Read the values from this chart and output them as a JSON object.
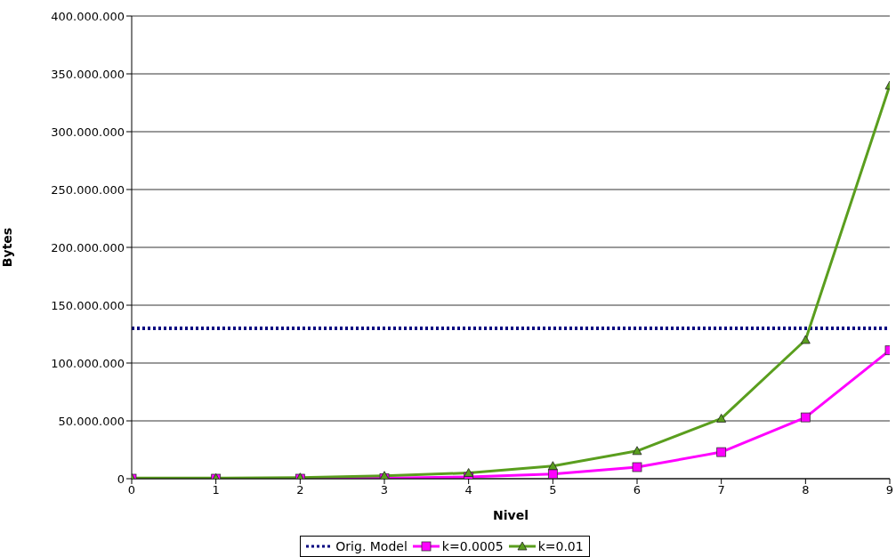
{
  "chart_data": {
    "type": "line",
    "xlabel": "Nivel",
    "ylabel": "Bytes",
    "x": [
      0,
      1,
      2,
      3,
      4,
      5,
      6,
      7,
      8,
      9
    ],
    "series": [
      {
        "name": "Orig. Model",
        "color": "#000080",
        "line_style": "dotted",
        "marker": "none",
        "values": [
          130000000,
          130000000,
          130000000,
          130000000,
          130000000,
          130000000,
          130000000,
          130000000,
          130000000,
          130000000
        ]
      },
      {
        "name": "k=0.0005",
        "color": "#ff00ff",
        "line_style": "solid",
        "marker": "square",
        "values": [
          0,
          0,
          0,
          500000,
          1500000,
          4000000,
          10000000,
          23000000,
          53000000,
          111000000
        ]
      },
      {
        "name": "k=0.01",
        "color": "#5a9e1e",
        "line_style": "solid",
        "marker": "triangle",
        "values": [
          500000,
          500000,
          1000000,
          2500000,
          5000000,
          11000000,
          24000000,
          52000000,
          120000000,
          340000000
        ]
      }
    ],
    "xlim": [
      0,
      9
    ],
    "xticks": [
      0,
      1,
      2,
      3,
      4,
      5,
      6,
      7,
      8,
      9
    ],
    "ylim": [
      0,
      400000000
    ],
    "yticks": [
      {
        "value": 0,
        "label": "0"
      },
      {
        "value": 50000000,
        "label": "50.000.000"
      },
      {
        "value": 100000000,
        "label": "100.000.000"
      },
      {
        "value": 150000000,
        "label": "150.000.000"
      },
      {
        "value": 200000000,
        "label": "200.000.000"
      },
      {
        "value": 250000000,
        "label": "250.000.000"
      },
      {
        "value": 300000000,
        "label": "300.000.000"
      },
      {
        "value": 350000000,
        "label": "350.000.000"
      },
      {
        "value": 400000000,
        "label": "400.000.000"
      }
    ],
    "grid": "y",
    "legend": "bottom"
  }
}
